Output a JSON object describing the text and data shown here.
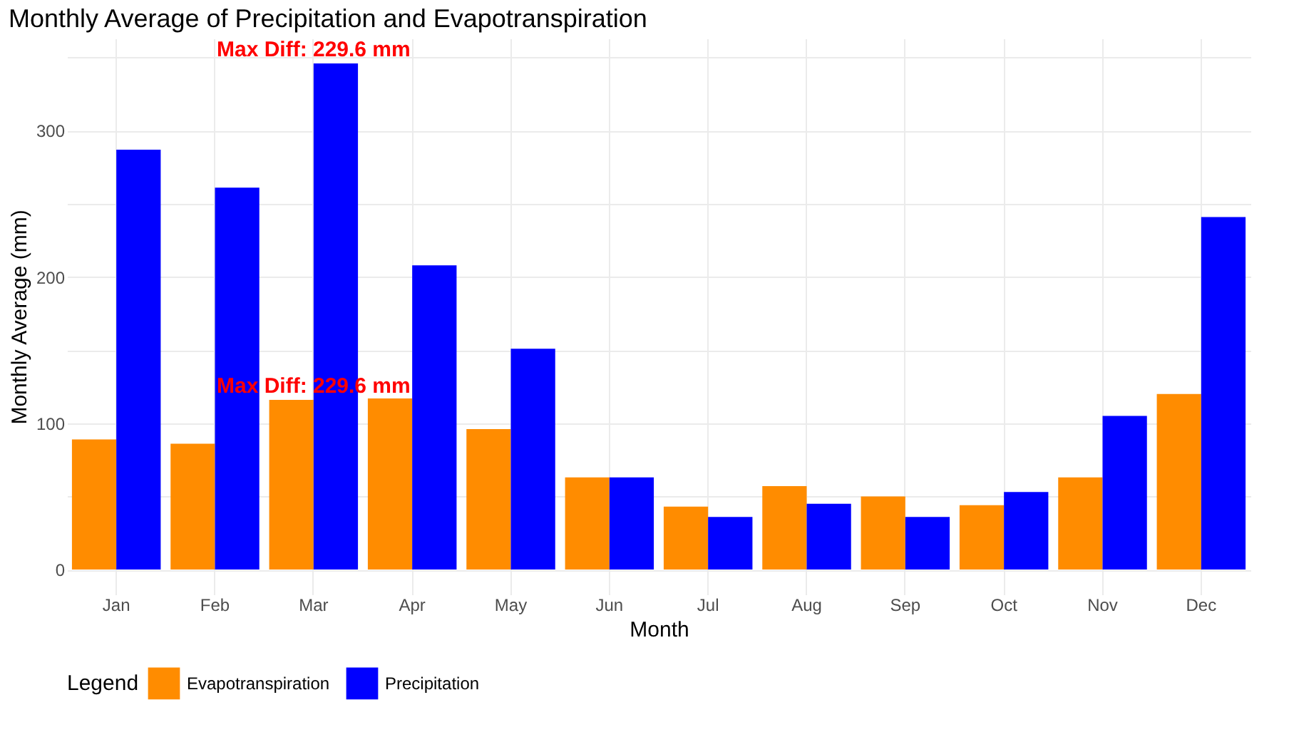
{
  "chart_data": {
    "type": "bar",
    "title": "Monthly Average of Precipitation and Evapotranspiration",
    "xlabel": "Month",
    "ylabel": "Monthly Average (mm)",
    "legend_title": "Legend",
    "categories": [
      "Jan",
      "Feb",
      "Mar",
      "Apr",
      "May",
      "Jun",
      "Jul",
      "Aug",
      "Sep",
      "Oct",
      "Nov",
      "Dec"
    ],
    "series": [
      {
        "name": "Evapotranspiration",
        "color": "#ff8c00",
        "values": [
          89,
          86,
          116,
          117,
          96,
          63,
          43,
          57,
          50,
          44,
          63,
          120
        ]
      },
      {
        "name": "Precipitation",
        "color": "#0000ff",
        "values": [
          287,
          261,
          346,
          208,
          151,
          63,
          36,
          45,
          36,
          53,
          105,
          241
        ]
      }
    ],
    "ylim": [
      -17,
      363
    ],
    "yticks": [
      0,
      {
        "value": 50,
        "label": null
      },
      100,
      {
        "value": 150,
        "label": null
      },
      200,
      {
        "value": 250,
        "label": null
      },
      300,
      {
        "value": 350,
        "label": null
      }
    ],
    "annotations": [
      {
        "text": "Max Diff: 229.6 mm",
        "x": "Mar",
        "y": 346
      },
      {
        "text": "Max Diff: 229.6 mm",
        "x": "Mar",
        "y": 116
      }
    ],
    "grid": true,
    "legend": "bottom"
  }
}
